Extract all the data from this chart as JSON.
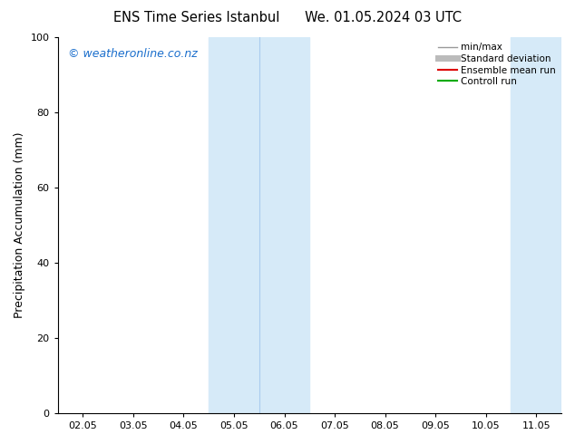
{
  "title": "ENS Time Series Istanbul      We. 01.05.2024 03 UTC",
  "ylabel": "Precipitation Accumulation (mm)",
  "ylim": [
    0,
    100
  ],
  "yticks": [
    0,
    20,
    40,
    60,
    80,
    100
  ],
  "xtick_labels": [
    "02.05",
    "03.05",
    "04.05",
    "05.05",
    "06.05",
    "07.05",
    "08.05",
    "09.05",
    "10.05",
    "11.05"
  ],
  "x_values": [
    1,
    2,
    3,
    4,
    5,
    6,
    7,
    8,
    9,
    10
  ],
  "watermark": "© weatheronline.co.nz",
  "watermark_color": "#1a6ecc",
  "shaded_bands": [
    {
      "xstart": 3.5,
      "xend": 5.5
    },
    {
      "xstart": 9.5,
      "xend": 11.0
    }
  ],
  "band_color": "#d6eaf8",
  "band_alpha": 1.0,
  "dividing_lines": [
    4.5,
    10.5
  ],
  "dividing_line_color": "#aaccee",
  "legend_items": [
    {
      "label": "min/max",
      "color": "#999999",
      "lw": 1.0,
      "ls": "-"
    },
    {
      "label": "Standard deviation",
      "color": "#bbbbbb",
      "lw": 5,
      "ls": "-"
    },
    {
      "label": "Ensemble mean run",
      "color": "#dd0000",
      "lw": 1.5,
      "ls": "-"
    },
    {
      "label": "Controll run",
      "color": "#00aa00",
      "lw": 1.5,
      "ls": "-"
    }
  ],
  "bg_color": "#ffffff",
  "title_fontsize": 10.5,
  "axis_label_fontsize": 9,
  "tick_fontsize": 8,
  "watermark_fontsize": 9
}
